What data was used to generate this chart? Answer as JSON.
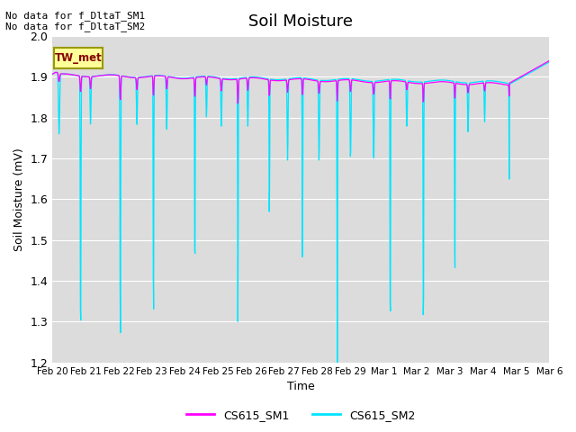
{
  "title": "Soil Moisture",
  "ylabel": "Soil Moisture (mV)",
  "xlabel": "Time",
  "ylim": [
    1.2,
    2.0
  ],
  "yticks": [
    1.2,
    1.3,
    1.4,
    1.5,
    1.6,
    1.7,
    1.8,
    1.9,
    2.0
  ],
  "bg_color": "#dcdcdc",
  "fig_color": "#ffffff",
  "line1_color": "#ff00ff",
  "line2_color": "#00e5ff",
  "legend_labels": [
    "CS615_SM1",
    "CS615_SM2"
  ],
  "no_data_text1": "No data for f_DltaT_SM1",
  "no_data_text2": "No data for f_DltaT_SM2",
  "tw_met_label": "TW_met",
  "xtick_labels": [
    "Feb 20",
    "Feb 21",
    "Feb 22",
    "Feb 23",
    "Feb 24",
    "Feb 25",
    "Feb 26",
    "Feb 27",
    "Feb 28",
    "Feb 29",
    "Mar 1",
    "Mar 2",
    "Mar 3",
    "Mar 4",
    "Mar 5",
    "Mar 6"
  ]
}
